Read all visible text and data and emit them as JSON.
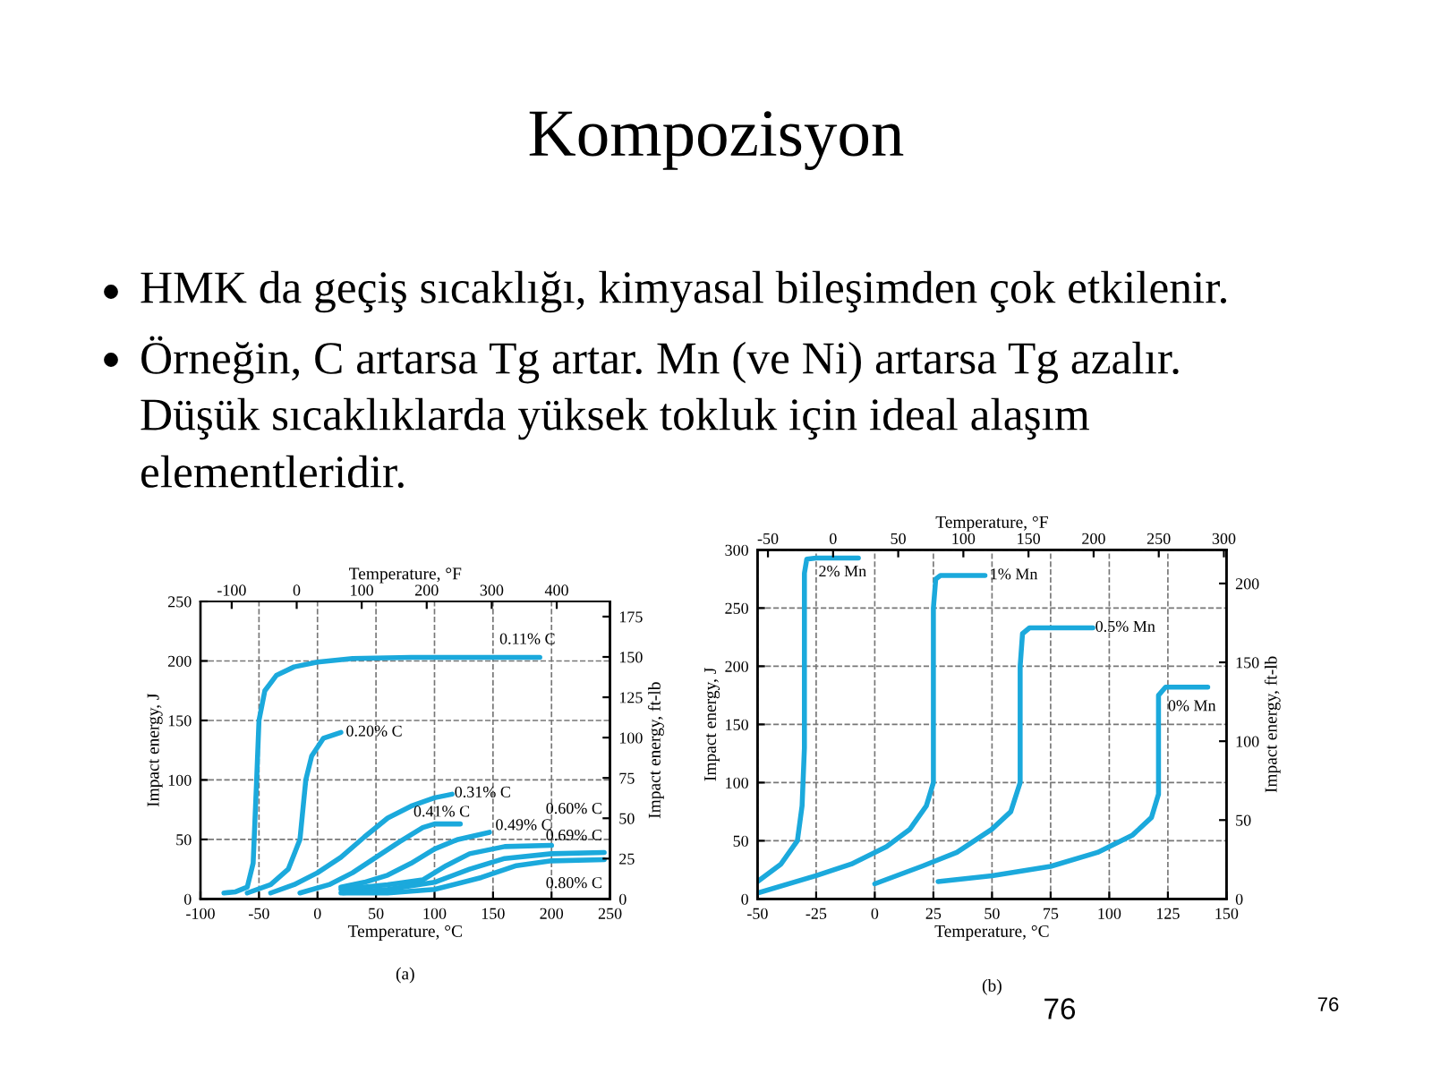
{
  "chart_data": [
    {
      "type": "other",
      "title": "Kompozisyon",
      "annotations": [
        "HMK da geçiş sıcaklığı, kimyasal bileşimden çok etkilenir.",
        "Örneğin, C artarsa Tg artar. Mn (ve Ni) artarsa Tg azalır.",
        "Düşük sıcaklıklarda yüksek tokluk için ideal alaşım",
        "elementleridir.",
        "76",
        "76"
      ]
    },
    {
      "type": "line",
      "xlabel": "Temperature, °C",
      "ylabel": "Impact energy, J",
      "x2label": "Temperature, °F",
      "y2label": "Impact energy, ft-lb",
      "xlim": [
        -100,
        250
      ],
      "xticks": [
        -100,
        -50,
        0,
        50,
        100,
        150,
        200,
        250
      ],
      "ylim": [
        0,
        250
      ],
      "yticks": [
        0,
        50,
        100,
        150,
        200,
        250
      ],
      "x2lim": [
        -148,
        482
      ],
      "x2ticks": [
        -100,
        0,
        100,
        200,
        300,
        400
      ],
      "y2lim": [
        0,
        184.4
      ],
      "y2ticks": [
        0,
        25,
        50,
        75,
        100,
        125,
        150,
        175
      ],
      "grid": true,
      "marker": "none",
      "line_style": "solid",
      "series": [
        {
          "color": "#1ba9dc",
          "x": [
            -80,
            -70,
            -60,
            -55,
            -52,
            -50,
            -45,
            -35,
            -20,
            0,
            30,
            80,
            190
          ],
          "values": [
            5,
            6,
            10,
            30,
            100,
            150,
            175,
            188,
            195,
            199,
            202,
            203,
            203
          ]
        },
        {
          "color": "#1ba9dc",
          "x": [
            -60,
            -40,
            -25,
            -15,
            -12,
            -10,
            -5,
            5,
            20
          ],
          "values": [
            5,
            12,
            25,
            50,
            80,
            100,
            120,
            135,
            140
          ]
        },
        {
          "color": "#1ba9dc",
          "x": [
            -40,
            -20,
            0,
            20,
            40,
            60,
            80,
            100,
            115
          ],
          "values": [
            5,
            12,
            22,
            35,
            52,
            68,
            78,
            85,
            88
          ]
        },
        {
          "color": "#1ba9dc",
          "x": [
            -15,
            10,
            30,
            50,
            70,
            90,
            100,
            122
          ],
          "values": [
            5,
            12,
            22,
            35,
            48,
            60,
            63,
            63
          ]
        },
        {
          "color": "#1ba9dc",
          "x": [
            20,
            40,
            60,
            80,
            100,
            120,
            147
          ],
          "values": [
            10,
            14,
            20,
            30,
            42,
            50,
            56
          ]
        },
        {
          "color": "#1ba9dc",
          "x": [
            20,
            60,
            90,
            110,
            130,
            160,
            200
          ],
          "values": [
            8,
            12,
            16,
            28,
            38,
            44,
            45
          ]
        },
        {
          "color": "#1ba9dc",
          "x": [
            20,
            60,
            100,
            130,
            160,
            200,
            245
          ],
          "values": [
            5,
            8,
            14,
            25,
            34,
            38,
            39
          ]
        },
        {
          "color": "#1ba9dc",
          "x": [
            22,
            60,
            100,
            140,
            170,
            200,
            245
          ],
          "values": [
            5,
            5,
            8,
            18,
            28,
            32,
            33
          ]
        }
      ],
      "annotations": [
        "0.11% C",
        "0.20% C",
        "0.31% C",
        "0.41% C",
        "0.49% C",
        "0.60% C",
        "0.69% C",
        "0.80% C",
        "(a)"
      ]
    },
    {
      "type": "line",
      "xlabel": "Temperature, °C",
      "ylabel": "Impact energy, J",
      "x2label": "Temperature, °F",
      "y2label": "Impact energy, ft-lb",
      "xlim": [
        -50,
        150
      ],
      "xticks": [
        -50,
        -25,
        0,
        25,
        50,
        75,
        100,
        125,
        150
      ],
      "ylim": [
        0,
        300
      ],
      "yticks": [
        0,
        50,
        100,
        150,
        200,
        250,
        300
      ],
      "x2lim": [
        -58,
        302
      ],
      "x2ticks": [
        -50,
        0,
        50,
        100,
        150,
        200,
        250,
        300
      ],
      "y2lim": [
        0,
        221.3
      ],
      "y2ticks": [
        0,
        50,
        100,
        150,
        200
      ],
      "grid": true,
      "marker": "none",
      "line_style": "solid",
      "series": [
        {
          "color": "#1ba9dc",
          "x": [
            -50,
            -40,
            -33,
            -31,
            -30,
            -30,
            -30,
            -29,
            -25,
            -7
          ],
          "values": [
            15,
            30,
            50,
            80,
            130,
            200,
            280,
            292,
            293,
            293
          ]
        },
        {
          "color": "#1ba9dc",
          "x": [
            -50,
            -25,
            -10,
            5,
            15,
            22,
            25,
            25,
            25,
            26,
            28,
            47
          ],
          "values": [
            5,
            20,
            30,
            45,
            60,
            80,
            100,
            150,
            250,
            275,
            278,
            278
          ]
        },
        {
          "color": "#1ba9dc",
          "x": [
            0,
            20,
            35,
            50,
            58,
            62,
            62,
            63,
            66,
            93
          ],
          "values": [
            13,
            28,
            40,
            60,
            75,
            100,
            200,
            228,
            233,
            233
          ]
        },
        {
          "color": "#1ba9dc",
          "x": [
            27,
            50,
            75,
            95,
            110,
            118,
            121,
            121,
            121,
            124,
            142
          ],
          "values": [
            15,
            20,
            28,
            40,
            55,
            70,
            90,
            150,
            175,
            182,
            182
          ]
        }
      ],
      "annotations": [
        "2% Mn",
        "1% Mn",
        "0.5% Mn",
        "0% Mn",
        "(b)"
      ]
    }
  ]
}
